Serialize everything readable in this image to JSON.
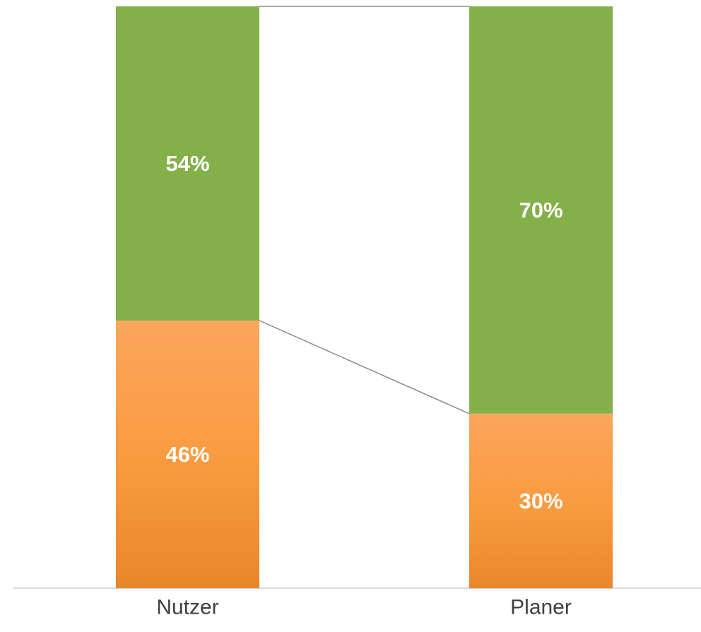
{
  "chart_data": {
    "type": "bar",
    "stacked": true,
    "percent": true,
    "series_lines": true,
    "grid": false,
    "legend": "none",
    "ylim": [
      0,
      100
    ],
    "categories": [
      "Nutzer",
      "Planer"
    ],
    "series": [
      {
        "values": [
          46,
          30
        ],
        "labels": [
          "46%",
          "30%"
        ],
        "color": "#f79646"
      },
      {
        "values": [
          54,
          70
        ],
        "labels": [
          "54%",
          "70%"
        ],
        "color": "#84b04a"
      }
    ]
  }
}
